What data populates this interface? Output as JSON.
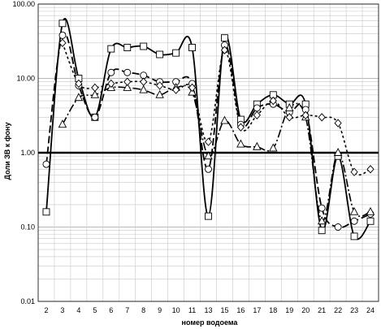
{
  "chart_data": {
    "type": "line",
    "title": "",
    "xlabel": "номер водоема",
    "ylabel": "Доли ЗВ к фону",
    "yscale": "log",
    "ylim": [
      0.01,
      100
    ],
    "ytick_labels": [
      "0.01",
      "0.10",
      "1.00",
      "10.00",
      "100.00"
    ],
    "ytick_values": [
      0.01,
      0.1,
      1,
      10,
      100
    ],
    "categories": [
      "2",
      "3",
      "4",
      "5",
      "6",
      "7",
      "8",
      "9",
      "10",
      "11",
      "13",
      "15",
      "16",
      "17",
      "18",
      "19",
      "20",
      "21",
      "22",
      "23",
      "24"
    ],
    "grid": "horizontal and vertical, light gray, log minor lines",
    "reference_line": 1.0,
    "legend": "none",
    "series": [
      {
        "marker": "square",
        "line_style": "solid",
        "values": [
          0.16,
          55,
          10,
          3.0,
          25,
          26,
          27,
          21,
          22,
          26,
          0.14,
          35,
          2.8,
          4.5,
          6.0,
          4.5,
          4.5,
          0.09,
          0.9,
          0.075,
          0.12
        ]
      },
      {
        "marker": "circle",
        "line_style": "long-dash",
        "values": [
          0.7,
          38,
          8.0,
          3.0,
          12,
          12,
          11,
          9,
          9,
          8.5,
          0.6,
          28,
          2.4,
          4.0,
          4.5,
          3.5,
          3.8,
          0.18,
          0.1,
          0.12,
          0.15
        ]
      },
      {
        "marker": "triangle",
        "line_style": "dash-dot",
        "values": [
          null,
          2.4,
          5.5,
          6.0,
          7.5,
          7.5,
          7.0,
          6.0,
          7.5,
          6.5,
          0.9,
          2.7,
          1.3,
          1.2,
          1.15,
          4.0,
          3.0,
          0.12,
          1.0,
          0.16,
          0.16
        ]
      },
      {
        "marker": "diamond",
        "line_style": "short-dash",
        "values": [
          null,
          30,
          8.5,
          7.5,
          8.5,
          9.0,
          9.0,
          8.0,
          7.0,
          7.5,
          1.4,
          24,
          2.2,
          3.2,
          5.0,
          3.0,
          3.2,
          3.0,
          2.5,
          0.55,
          0.6
        ]
      }
    ]
  }
}
